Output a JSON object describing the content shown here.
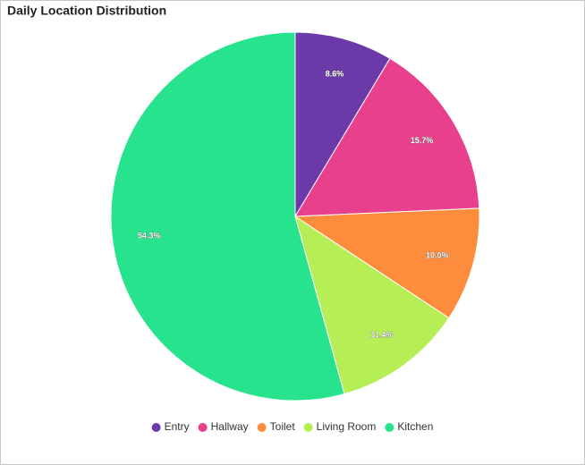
{
  "chart_data": {
    "type": "pie",
    "title": "Daily Location Distribution",
    "categories": [
      "Entry",
      "Hallway",
      "Toilet",
      "Living Room",
      "Kitchen"
    ],
    "values": [
      8.6,
      15.7,
      10.0,
      11.4,
      54.3
    ],
    "value_labels": [
      "8.6%",
      "15.7%",
      "10.0%",
      "11.4%",
      "54.3%"
    ],
    "colors": [
      "#6b3aa8",
      "#e8408c",
      "#fd8d3c",
      "#b6ee56",
      "#28e38d"
    ],
    "legend": "bottom"
  }
}
